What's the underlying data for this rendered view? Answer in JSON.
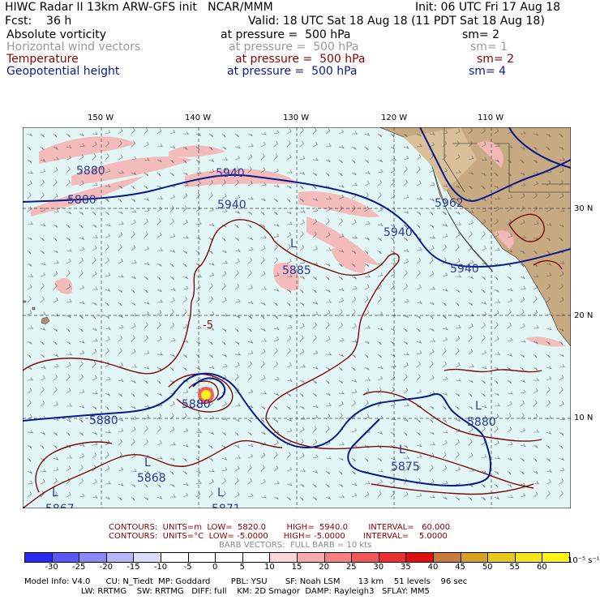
{
  "header": {
    "title": "HIWC Radar II 13km ARW-GFS init   NCAR/MMM",
    "init": "Init: 06 UTC Fri 17 Aug 18",
    "fcst": "Fcst:    36 h",
    "valid": "Valid: 18 UTC Sat 18 Aug 18 (11 PDT Sat 18 Aug 18)"
  },
  "fields": [
    {
      "name": "Absolute vorticity",
      "pressure": "at pressure =  500 hPa",
      "sm": "sm= 2",
      "color": "#000000"
    },
    {
      "name": "Horizontal wind vectors",
      "pressure": "at pressure =  500 hPa",
      "sm": "sm= 1",
      "color": "#999999"
    },
    {
      "name": "Temperature",
      "pressure": "at pressure =  500 hPa",
      "sm": "sm= 2",
      "color": "#8b0000"
    },
    {
      "name": "Geopotential height",
      "pressure": "at pressure =  500 hPa",
      "sm": "sm= 4",
      "color": "#0a1a8c"
    }
  ],
  "map": {
    "lon_labels": [
      "150 W",
      "140 W",
      "130 W",
      "120 W",
      "110 W"
    ],
    "lat_labels": [
      "30 N",
      "20 N",
      "10 N"
    ],
    "height_labels": [
      "5880",
      "5880",
      "5940",
      "5940",
      "5962",
      "5940",
      "5940",
      "5885",
      "5880",
      "5880",
      "5875",
      "5868",
      "5871",
      "5867",
      "5880"
    ],
    "low_marker": "L",
    "temp_label": "-5",
    "colors": {
      "ocean": "#e2f6f6",
      "land": "#c8aa82",
      "height": "#0a1a8c",
      "temp": "#7a0a0a",
      "vort": "#f5b8b8",
      "grid": "#444444",
      "barb": "#666666"
    }
  },
  "contour_info": {
    "line1": "CONTOURS:  UNITS=m  LOW=  5820.0        HIGH=  5940.0        INTERVAL=   60.000",
    "line2": "CONTOURS:  UNITS=°C  LOW= -5.0000      HIGH= -5.0000       INTERVAL=    5.0000",
    "line3": "BARB VECTORS:  FULL BARB = 10 kts"
  },
  "colorbar": {
    "labels": [
      "-30",
      "-25",
      "-20",
      "-15",
      "-10",
      "-5",
      "0",
      "5",
      "10",
      "15",
      "20",
      "25",
      "30",
      "35",
      "40",
      "45",
      "50",
      "55",
      "60"
    ],
    "unit": "10⁻⁵ s⁻¹",
    "colors": [
      "#2a2af0",
      "#5858f4",
      "#8888f6",
      "#b6b6f8",
      "#dcdcfc",
      "#ffffff",
      "#ffffff",
      "#ffffff",
      "#ffffff",
      "#fcd6d6",
      "#f8aaaa",
      "#f48080",
      "#f05858",
      "#ec3030",
      "#e01010",
      "#c87a3a",
      "#d8a020",
      "#e8c818",
      "#f4e418",
      "#fcf414"
    ]
  },
  "footer": {
    "line1": "Model Info: V4.0      CU: N_Tiedt  MP: Goddard        PBL: YSU       SF: Noah LSM       13 km    51 levels    96 sec",
    "line2": "                      LW: RRTMG    SW: RRTMG   DIFF: full    KM: 2D Smagor  DAMP: Rayleigh3   SFLAY: MM5"
  }
}
